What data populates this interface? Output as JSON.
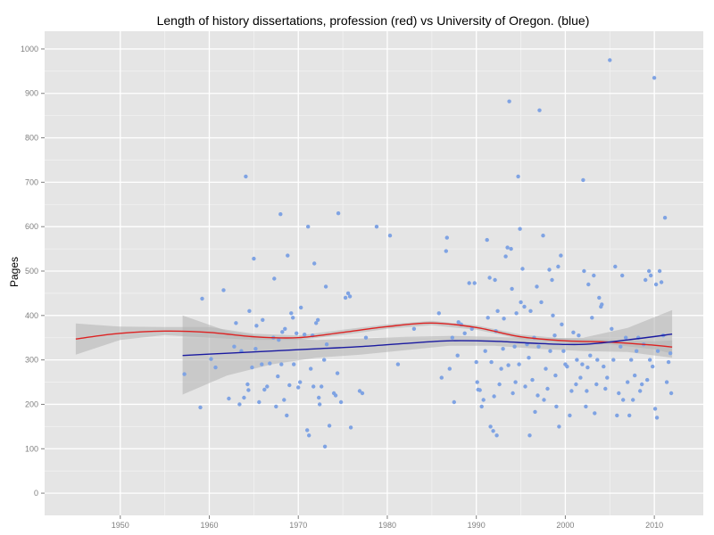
{
  "chart_data": {
    "type": "scatter",
    "title": "Length of history dissertations, profession (red) vs University of Oregon. (blue)",
    "xlabel": "",
    "ylabel": "Pages",
    "xlim": [
      1941.5,
      2015.5
    ],
    "ylim": [
      -50,
      1040
    ],
    "xticks": [
      1950,
      1960,
      1970,
      1980,
      1990,
      2000,
      2010
    ],
    "yticks": [
      0,
      100,
      200,
      300,
      400,
      500,
      600,
      700,
      800,
      900,
      1000
    ],
    "grid": true,
    "colors": {
      "panel": "#e5e5e5",
      "grid_major": "#ffffff",
      "grid_minor": "#f2f2f2",
      "points": "#7fa3e3",
      "profession_line": "#dd2222",
      "oregon_line": "#1a1aa0",
      "ribbon": "#b3b3b3"
    },
    "series": [
      {
        "kind": "points",
        "points": [
          [
            1957.2,
            268
          ],
          [
            1959.0,
            193
          ],
          [
            1959.2,
            438
          ],
          [
            1960.2,
            302
          ],
          [
            1960.7,
            283
          ],
          [
            1961.6,
            457
          ],
          [
            1962.2,
            213
          ],
          [
            1962.8,
            330
          ],
          [
            1963.0,
            383
          ],
          [
            1963.4,
            200
          ],
          [
            1963.6,
            320
          ],
          [
            1963.9,
            215
          ],
          [
            1964.1,
            713
          ],
          [
            1964.3,
            245
          ],
          [
            1964.4,
            232
          ],
          [
            1964.5,
            410
          ],
          [
            1964.8,
            283
          ],
          [
            1965.0,
            528
          ],
          [
            1965.2,
            325
          ],
          [
            1965.3,
            377
          ],
          [
            1965.6,
            205
          ],
          [
            1965.9,
            290
          ],
          [
            1966.0,
            390
          ],
          [
            1966.2,
            233
          ],
          [
            1966.5,
            240
          ],
          [
            1966.8,
            292
          ],
          [
            1967.2,
            350
          ],
          [
            1967.3,
            483
          ],
          [
            1967.5,
            195
          ],
          [
            1967.7,
            263
          ],
          [
            1967.8,
            345
          ],
          [
            1968.0,
            628
          ],
          [
            1968.1,
            290
          ],
          [
            1968.2,
            363
          ],
          [
            1968.4,
            210
          ],
          [
            1968.5,
            370
          ],
          [
            1968.7,
            175
          ],
          [
            1968.8,
            535
          ],
          [
            1969.0,
            243
          ],
          [
            1969.2,
            405
          ],
          [
            1969.4,
            395
          ],
          [
            1969.5,
            290
          ],
          [
            1969.8,
            360
          ],
          [
            1970.0,
            238
          ],
          [
            1970.2,
            250
          ],
          [
            1970.3,
            418
          ],
          [
            1970.7,
            357
          ],
          [
            1971.0,
            142
          ],
          [
            1971.1,
            600
          ],
          [
            1971.2,
            130
          ],
          [
            1971.4,
            280
          ],
          [
            1971.6,
            355
          ],
          [
            1971.7,
            240
          ],
          [
            1971.8,
            517
          ],
          [
            1972.0,
            383
          ],
          [
            1972.2,
            390
          ],
          [
            1972.3,
            215
          ],
          [
            1972.4,
            200
          ],
          [
            1972.6,
            240
          ],
          [
            1972.9,
            300
          ],
          [
            1973.0,
            105
          ],
          [
            1973.1,
            465
          ],
          [
            1973.2,
            335
          ],
          [
            1973.5,
            152
          ],
          [
            1974.0,
            225
          ],
          [
            1974.2,
            220
          ],
          [
            1974.4,
            270
          ],
          [
            1974.5,
            630
          ],
          [
            1974.8,
            205
          ],
          [
            1975.3,
            440
          ],
          [
            1975.6,
            450
          ],
          [
            1975.8,
            443
          ],
          [
            1975.9,
            148
          ],
          [
            1976.9,
            230
          ],
          [
            1977.2,
            225
          ],
          [
            1977.6,
            350
          ],
          [
            1978.8,
            600
          ],
          [
            1980.3,
            580
          ],
          [
            1981.2,
            290
          ],
          [
            1983.0,
            370
          ],
          [
            1985.8,
            405
          ],
          [
            1986.1,
            260
          ],
          [
            1986.6,
            545
          ],
          [
            1986.7,
            575
          ],
          [
            1987.0,
            280
          ],
          [
            1987.3,
            350
          ],
          [
            1987.5,
            205
          ],
          [
            1987.9,
            310
          ],
          [
            1988.0,
            385
          ],
          [
            1988.3,
            380
          ],
          [
            1988.7,
            360
          ],
          [
            1989.2,
            473
          ],
          [
            1989.5,
            370
          ],
          [
            1989.8,
            473
          ],
          [
            1990.0,
            295
          ],
          [
            1990.1,
            250
          ],
          [
            1990.2,
            233
          ],
          [
            1990.4,
            232
          ],
          [
            1990.6,
            195
          ],
          [
            1990.8,
            210
          ],
          [
            1991.0,
            320
          ],
          [
            1991.2,
            570
          ],
          [
            1991.3,
            395
          ],
          [
            1991.5,
            485
          ],
          [
            1991.6,
            150
          ],
          [
            1991.7,
            295
          ],
          [
            1991.9,
            140
          ],
          [
            1992.0,
            218
          ],
          [
            1992.1,
            480
          ],
          [
            1992.2,
            365
          ],
          [
            1992.3,
            130
          ],
          [
            1992.4,
            410
          ],
          [
            1992.6,
            245
          ],
          [
            1992.8,
            280
          ],
          [
            1993.0,
            325
          ],
          [
            1993.1,
            393
          ],
          [
            1993.3,
            533
          ],
          [
            1993.5,
            553
          ],
          [
            1993.6,
            288
          ],
          [
            1993.7,
            882
          ],
          [
            1993.9,
            550
          ],
          [
            1994.0,
            460
          ],
          [
            1994.1,
            225
          ],
          [
            1994.3,
            330
          ],
          [
            1994.4,
            250
          ],
          [
            1994.5,
            405
          ],
          [
            1994.7,
            713
          ],
          [
            1994.8,
            290
          ],
          [
            1994.9,
            595
          ],
          [
            1995.0,
            430
          ],
          [
            1995.2,
            505
          ],
          [
            1995.4,
            420
          ],
          [
            1995.5,
            240
          ],
          [
            1995.7,
            335
          ],
          [
            1995.9,
            305
          ],
          [
            1996.0,
            130
          ],
          [
            1996.1,
            410
          ],
          [
            1996.3,
            255
          ],
          [
            1996.5,
            350
          ],
          [
            1996.6,
            183
          ],
          [
            1996.8,
            465
          ],
          [
            1996.9,
            220
          ],
          [
            1997.0,
            330
          ],
          [
            1997.1,
            862
          ],
          [
            1997.3,
            430
          ],
          [
            1997.5,
            580
          ],
          [
            1997.6,
            210
          ],
          [
            1997.8,
            280
          ],
          [
            1998.0,
            235
          ],
          [
            1998.2,
            503
          ],
          [
            1998.3,
            320
          ],
          [
            1998.5,
            480
          ],
          [
            1998.6,
            400
          ],
          [
            1998.8,
            355
          ],
          [
            1998.9,
            265
          ],
          [
            1999.0,
            195
          ],
          [
            1999.2,
            510
          ],
          [
            1999.3,
            150
          ],
          [
            1999.5,
            535
          ],
          [
            1999.6,
            380
          ],
          [
            1999.8,
            320
          ],
          [
            2000.0,
            290
          ],
          [
            2000.2,
            285
          ],
          [
            2000.5,
            175
          ],
          [
            2000.7,
            230
          ],
          [
            2000.9,
            362
          ],
          [
            2001.2,
            245
          ],
          [
            2001.3,
            300
          ],
          [
            2001.5,
            355
          ],
          [
            2001.7,
            260
          ],
          [
            2001.9,
            290
          ],
          [
            2002.0,
            705
          ],
          [
            2002.1,
            500
          ],
          [
            2002.3,
            195
          ],
          [
            2002.4,
            230
          ],
          [
            2002.5,
            283
          ],
          [
            2002.6,
            470
          ],
          [
            2002.8,
            310
          ],
          [
            2003.0,
            395
          ],
          [
            2003.2,
            490
          ],
          [
            2003.3,
            180
          ],
          [
            2003.5,
            245
          ],
          [
            2003.6,
            300
          ],
          [
            2003.8,
            440
          ],
          [
            2004.0,
            420
          ],
          [
            2004.1,
            425
          ],
          [
            2004.3,
            285
          ],
          [
            2004.5,
            235
          ],
          [
            2004.7,
            260
          ],
          [
            2005.0,
            975
          ],
          [
            2005.2,
            370
          ],
          [
            2005.4,
            300
          ],
          [
            2005.6,
            510
          ],
          [
            2005.8,
            175
          ],
          [
            2006.0,
            225
          ],
          [
            2006.2,
            330
          ],
          [
            2006.4,
            490
          ],
          [
            2006.5,
            210
          ],
          [
            2006.8,
            350
          ],
          [
            2007.0,
            250
          ],
          [
            2007.2,
            175
          ],
          [
            2007.4,
            300
          ],
          [
            2007.6,
            210
          ],
          [
            2007.8,
            265
          ],
          [
            2008.0,
            320
          ],
          [
            2008.2,
            350
          ],
          [
            2008.4,
            230
          ],
          [
            2008.6,
            245
          ],
          [
            2008.8,
            335
          ],
          [
            2009.0,
            480
          ],
          [
            2009.2,
            255
          ],
          [
            2009.4,
            500
          ],
          [
            2009.5,
            300
          ],
          [
            2009.6,
            490
          ],
          [
            2009.8,
            285
          ],
          [
            2010.0,
            935
          ],
          [
            2010.1,
            190
          ],
          [
            2010.2,
            470
          ],
          [
            2010.3,
            170
          ],
          [
            2010.4,
            320
          ],
          [
            2010.6,
            500
          ],
          [
            2010.8,
            475
          ],
          [
            2011.0,
            355
          ],
          [
            2011.2,
            620
          ],
          [
            2011.4,
            250
          ],
          [
            2011.6,
            295
          ],
          [
            2011.8,
            315
          ],
          [
            2011.9,
            225
          ]
        ]
      },
      {
        "kind": "smooth",
        "color": "#dd2222",
        "x": [
          1945,
          1950,
          1955,
          1960,
          1965,
          1970,
          1975,
          1980,
          1985,
          1990,
          1995,
          2000,
          2005,
          2010,
          2012
        ],
        "y": [
          347,
          360,
          365,
          362,
          352,
          350,
          362,
          375,
          383,
          373,
          352,
          343,
          340,
          333,
          329
        ],
        "band_x": [
          1945,
          1950,
          1955,
          1960,
          1965,
          1970,
          1975,
          1980,
          1985,
          1990,
          1995,
          2000,
          2005,
          2010,
          2012
        ],
        "band_lo": [
          312,
          345,
          356,
          350,
          345,
          345,
          356,
          370,
          378,
          368,
          347,
          338,
          335,
          324,
          314
        ],
        "band_hi": [
          382,
          375,
          374,
          374,
          359,
          355,
          368,
          380,
          388,
          378,
          357,
          348,
          345,
          342,
          344
        ]
      },
      {
        "kind": "smooth",
        "color": "#1a1aa0",
        "x": [
          1957,
          1962,
          1967,
          1972,
          1977,
          1982,
          1987,
          1992,
          1997,
          2002,
          2007,
          2012
        ],
        "y": [
          310,
          315,
          320,
          325,
          330,
          337,
          343,
          342,
          337,
          335,
          345,
          358
        ],
        "band_x": [
          1957,
          1962,
          1967,
          1972,
          1977,
          1982,
          1987,
          1992,
          1997,
          2002,
          2007,
          2012
        ],
        "band_lo": [
          222,
          265,
          290,
          305,
          312,
          322,
          332,
          332,
          325,
          320,
          318,
          305
        ],
        "band_hi": [
          400,
          365,
          350,
          345,
          348,
          352,
          354,
          352,
          349,
          350,
          372,
          412
        ]
      }
    ]
  }
}
